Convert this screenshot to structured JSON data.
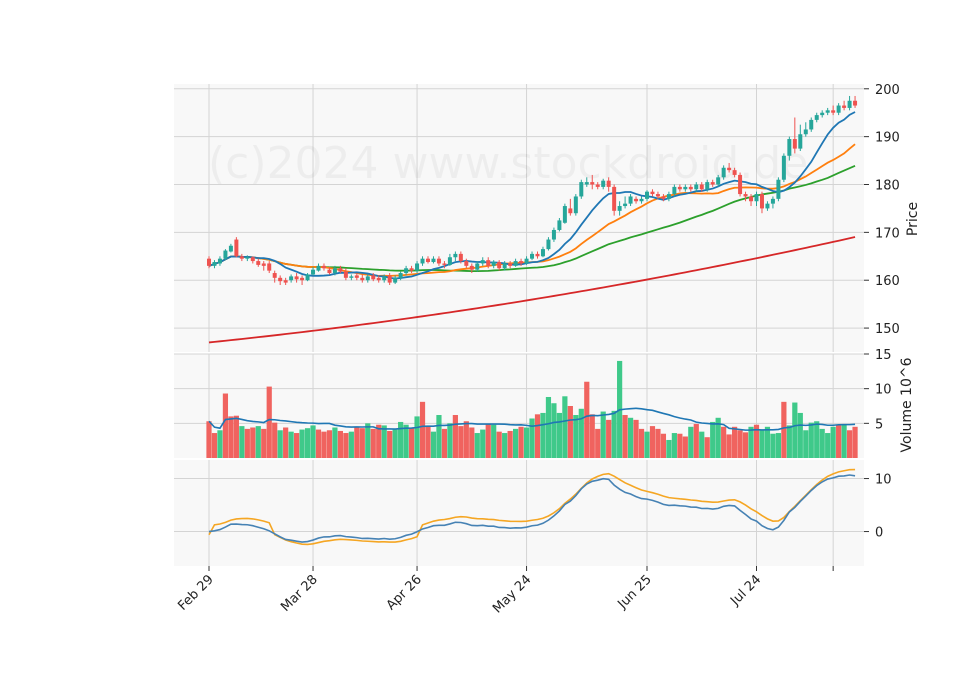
{
  "watermark": "(c)2024 www.stockdroid.de",
  "colors": {
    "up": "#26a69a",
    "down": "#ef5350",
    "vol_up": "#3fc98a",
    "vol_down": "#f0635f",
    "ma_fast": "#1f77b4",
    "ma_mid": "#ff7f0e",
    "ma_slow": "#2ca02c",
    "ma_long": "#d62728",
    "vol_ma": "#1f77b4",
    "osc_a": "#4682b4",
    "osc_b": "#f5a623",
    "panel_bg": "#f8f8f8",
    "grid": "#d4d4d4"
  },
  "chart_data": {
    "type": "candlestick",
    "x_ticks": [
      {
        "index": 0,
        "label": "Feb 29"
      },
      {
        "index": 19,
        "label": "Mar 28"
      },
      {
        "index": 38,
        "label": "Apr 26"
      },
      {
        "index": 58,
        "label": "May 24"
      },
      {
        "index": 80,
        "label": "Jun 25"
      },
      {
        "index": 100,
        "label": "Jul 24"
      },
      {
        "index": 114,
        "label": ""
      }
    ],
    "price_panel": {
      "ylabel": "Price",
      "ylim": [
        145,
        201
      ],
      "yticks": [
        150,
        160,
        170,
        180,
        190,
        200
      ],
      "candles": [
        [
          164.5,
          163.0,
          165.0,
          162.5
        ],
        [
          163.0,
          163.8,
          164.2,
          162.5
        ],
        [
          163.5,
          164.5,
          165.0,
          163.0
        ],
        [
          164.5,
          166.2,
          166.5,
          164.2
        ],
        [
          166.0,
          167.2,
          167.6,
          165.8
        ],
        [
          168.5,
          165.0,
          169.0,
          164.8
        ],
        [
          165.0,
          164.5,
          165.5,
          164.0
        ],
        [
          164.5,
          164.8,
          165.2,
          164.0
        ],
        [
          164.8,
          164.0,
          165.0,
          163.5
        ],
        [
          164.0,
          163.2,
          164.5,
          162.8
        ],
        [
          163.5,
          163.0,
          164.0,
          162.0
        ],
        [
          163.5,
          162.0,
          164.0,
          161.5
        ],
        [
          161.5,
          160.5,
          162.0,
          159.5
        ],
        [
          160.5,
          159.8,
          161.0,
          159.0
        ],
        [
          160.0,
          159.5,
          160.5,
          159.0
        ],
        [
          160.0,
          160.8,
          161.2,
          159.5
        ],
        [
          160.8,
          160.2,
          161.5,
          159.5
        ],
        [
          160.5,
          160.0,
          161.0,
          159.0
        ],
        [
          160.0,
          161.2,
          161.5,
          159.8
        ],
        [
          161.2,
          162.2,
          162.8,
          161.0
        ],
        [
          162.0,
          163.0,
          163.5,
          161.8
        ],
        [
          163.0,
          162.5,
          163.5,
          162.0
        ],
        [
          162.2,
          161.5,
          162.8,
          161.2
        ],
        [
          161.5,
          162.5,
          163.0,
          161.0
        ],
        [
          162.5,
          161.8,
          163.0,
          161.5
        ],
        [
          161.8,
          160.5,
          162.5,
          160.0
        ],
        [
          160.5,
          160.8,
          161.2,
          160.0
        ],
        [
          161.0,
          160.5,
          161.5,
          160.0
        ],
        [
          160.5,
          160.0,
          161.2,
          159.5
        ],
        [
          160.0,
          160.8,
          161.2,
          159.5
        ],
        [
          161.0,
          160.2,
          161.5,
          159.8
        ],
        [
          160.5,
          160.0,
          161.0,
          159.5
        ],
        [
          160.0,
          160.8,
          161.2,
          159.5
        ],
        [
          161.0,
          159.5,
          161.5,
          159.0
        ],
        [
          159.5,
          160.5,
          161.0,
          159.2
        ],
        [
          160.5,
          161.5,
          161.8,
          160.0
        ],
        [
          161.5,
          162.5,
          163.0,
          161.0
        ],
        [
          162.5,
          162.0,
          163.0,
          161.5
        ],
        [
          162.0,
          163.5,
          164.0,
          161.5
        ],
        [
          163.5,
          164.5,
          165.0,
          163.0
        ],
        [
          164.5,
          163.8,
          165.0,
          163.5
        ],
        [
          163.8,
          164.5,
          165.0,
          163.5
        ],
        [
          164.5,
          163.5,
          165.0,
          163.0
        ],
        [
          163.5,
          163.2,
          164.0,
          162.5
        ],
        [
          163.2,
          164.8,
          165.5,
          163.0
        ],
        [
          164.8,
          165.5,
          166.0,
          164.0
        ],
        [
          165.5,
          164.0,
          166.0,
          163.5
        ],
        [
          164.0,
          163.0,
          164.5,
          162.5
        ],
        [
          163.0,
          162.2,
          163.5,
          161.5
        ],
        [
          162.2,
          163.5,
          164.0,
          161.8
        ],
        [
          163.5,
          164.2,
          164.8,
          163.0
        ],
        [
          164.2,
          163.0,
          164.8,
          162.5
        ],
        [
          163.0,
          163.8,
          164.2,
          162.5
        ],
        [
          163.8,
          162.5,
          164.2,
          162.0
        ],
        [
          162.5,
          163.5,
          164.0,
          162.0
        ],
        [
          163.5,
          163.0,
          164.0,
          162.5
        ],
        [
          163.0,
          164.0,
          164.5,
          162.8
        ],
        [
          164.0,
          163.5,
          164.5,
          163.0
        ],
        [
          163.5,
          164.5,
          165.0,
          163.2
        ],
        [
          164.5,
          165.5,
          166.0,
          164.2
        ],
        [
          165.5,
          165.0,
          166.0,
          164.5
        ],
        [
          165.0,
          166.5,
          167.0,
          164.8
        ],
        [
          166.5,
          168.5,
          169.0,
          166.2
        ],
        [
          168.5,
          170.5,
          171.0,
          168.0
        ],
        [
          170.5,
          172.5,
          173.0,
          170.2
        ],
        [
          172.0,
          175.5,
          176.0,
          171.8
        ],
        [
          175.0,
          174.0,
          177.0,
          173.5
        ],
        [
          174.0,
          177.5,
          178.0,
          173.5
        ],
        [
          177.5,
          180.5,
          181.0,
          177.0
        ],
        [
          180.0,
          180.5,
          181.5,
          179.5
        ],
        [
          180.5,
          180.0,
          182.0,
          179.0
        ],
        [
          180.0,
          179.5,
          180.5,
          179.0
        ],
        [
          179.5,
          180.8,
          181.2,
          179.0
        ],
        [
          180.8,
          179.5,
          181.5,
          178.5
        ],
        [
          179.5,
          174.5,
          180.0,
          173.5
        ],
        [
          174.5,
          175.5,
          176.5,
          173.5
        ],
        [
          175.5,
          176.0,
          177.5,
          175.0
        ],
        [
          176.0,
          177.5,
          178.0,
          175.5
        ],
        [
          177.0,
          176.5,
          177.5,
          176.0
        ],
        [
          176.5,
          177.0,
          177.5,
          176.0
        ],
        [
          177.0,
          178.5,
          178.8,
          176.5
        ],
        [
          178.5,
          178.0,
          179.0,
          177.5
        ],
        [
          178.0,
          177.5,
          178.5,
          177.0
        ],
        [
          177.5,
          177.0,
          178.0,
          176.5
        ],
        [
          177.0,
          178.0,
          178.5,
          176.5
        ],
        [
          178.0,
          179.5,
          180.0,
          177.5
        ],
        [
          179.5,
          179.0,
          180.0,
          178.5
        ],
        [
          179.0,
          179.5,
          180.0,
          178.5
        ],
        [
          179.5,
          179.0,
          180.0,
          178.5
        ],
        [
          179.0,
          180.0,
          180.5,
          178.5
        ],
        [
          180.0,
          179.0,
          180.5,
          178.5
        ],
        [
          179.0,
          180.5,
          181.0,
          178.5
        ],
        [
          180.5,
          180.0,
          181.0,
          179.5
        ],
        [
          180.0,
          181.5,
          182.0,
          179.5
        ],
        [
          181.5,
          183.5,
          184.0,
          181.0
        ],
        [
          183.5,
          183.0,
          184.5,
          182.5
        ],
        [
          183.0,
          182.0,
          183.5,
          181.5
        ],
        [
          182.0,
          178.0,
          182.5,
          177.5
        ],
        [
          178.0,
          177.5,
          178.5,
          176.5
        ],
        [
          177.5,
          176.5,
          178.0,
          175.5
        ],
        [
          176.5,
          178.0,
          178.5,
          175.5
        ],
        [
          178.0,
          175.0,
          178.5,
          174.0
        ],
        [
          175.0,
          176.0,
          176.5,
          174.5
        ],
        [
          176.0,
          177.0,
          177.5,
          175.0
        ],
        [
          177.0,
          181.0,
          181.5,
          176.5
        ],
        [
          181.0,
          186.0,
          186.5,
          180.5
        ],
        [
          186.0,
          189.5,
          190.0,
          185.0
        ],
        [
          189.5,
          187.5,
          194.0,
          186.5
        ],
        [
          187.5,
          190.5,
          192.5,
          187.0
        ],
        [
          190.5,
          191.5,
          193.0,
          190.0
        ],
        [
          191.5,
          193.5,
          194.0,
          191.0
        ],
        [
          193.5,
          194.5,
          195.0,
          193.0
        ],
        [
          194.5,
          195.0,
          195.5,
          194.0
        ],
        [
          195.0,
          195.5,
          196.0,
          194.5
        ],
        [
          195.5,
          195.0,
          196.5,
          194.5
        ],
        [
          195.0,
          196.5,
          197.0,
          194.5
        ],
        [
          196.5,
          196.0,
          197.5,
          195.5
        ],
        [
          196.0,
          197.5,
          198.5,
          195.5
        ],
        [
          197.5,
          196.5,
          198.5,
          196.0
        ]
      ]
    },
    "volume_panel": {
      "ylabel": "Volume  10^6",
      "ylim": [
        0,
        15
      ],
      "yticks": [
        5,
        10,
        15
      ],
      "values": [
        5.3,
        3.6,
        4.0,
        9.3,
        6.0,
        6.1,
        4.6,
        4.2,
        4.4,
        4.6,
        4.2,
        10.3,
        5.1,
        4.0,
        4.4,
        3.8,
        3.6,
        4.1,
        4.3,
        4.7,
        4.1,
        3.8,
        4.0,
        4.4,
        3.9,
        3.6,
        3.8,
        4.4,
        4.3,
        5.0,
        4.2,
        4.8,
        4.7,
        3.9,
        4.1,
        5.2,
        4.8,
        4.3,
        6.0,
        8.1,
        4.5,
        3.8,
        6.2,
        4.2,
        5.0,
        6.2,
        4.6,
        5.3,
        4.4,
        3.6,
        4.1,
        4.9,
        4.8,
        3.8,
        3.6,
        3.9,
        4.2,
        4.5,
        4.4,
        5.7,
        6.3,
        6.5,
        8.8,
        7.9,
        6.5,
        8.9,
        7.5,
        6.2,
        7.1,
        11.0,
        6.3,
        4.2,
        6.7,
        5.5,
        6.8,
        14.0,
        6.2,
        5.8,
        5.5,
        4.2,
        3.8,
        4.6,
        4.2,
        3.5,
        2.6,
        3.6,
        3.5,
        3.1,
        4.5,
        4.9,
        3.8,
        3.0,
        5.2,
        5.8,
        4.5,
        3.4,
        4.5,
        4.0,
        3.7,
        4.5,
        4.8,
        4.0,
        4.5,
        3.5,
        3.6,
        8.1,
        4.7,
        8.0,
        6.5,
        4.0,
        5.1,
        5.3,
        4.2,
        3.6,
        4.5,
        4.8,
        4.9,
        4.0,
        4.5
      ],
      "down_mask": [
        1,
        1,
        0,
        1,
        1,
        1,
        0,
        1,
        1,
        0,
        1,
        1,
        1,
        0,
        1,
        0,
        1,
        0,
        0,
        0,
        1,
        1,
        1,
        0,
        1,
        1,
        0,
        1,
        1,
        0,
        1,
        1,
        0,
        1,
        0,
        0,
        0,
        1,
        0,
        1,
        1,
        0,
        0,
        1,
        0,
        1,
        1,
        1,
        1,
        0,
        0,
        1,
        0,
        1,
        0,
        1,
        0,
        1,
        0,
        0,
        1,
        0,
        0,
        0,
        0,
        0,
        1,
        0,
        0,
        1,
        1,
        1,
        0,
        1,
        0,
        0,
        1,
        0,
        1,
        1,
        0,
        1,
        1,
        1,
        0,
        0,
        1,
        1,
        0,
        1,
        0,
        1,
        0,
        0,
        1,
        1,
        1,
        1,
        1,
        0,
        1,
        0,
        0,
        0,
        0,
        1,
        0,
        0,
        0,
        0,
        0,
        0,
        0,
        0,
        0,
        1,
        0,
        1,
        1,
        1
      ]
    },
    "oscillator_panel": {
      "ylim": [
        -6.5,
        13.5
      ],
      "yticks": [
        0,
        10
      ]
    }
  }
}
